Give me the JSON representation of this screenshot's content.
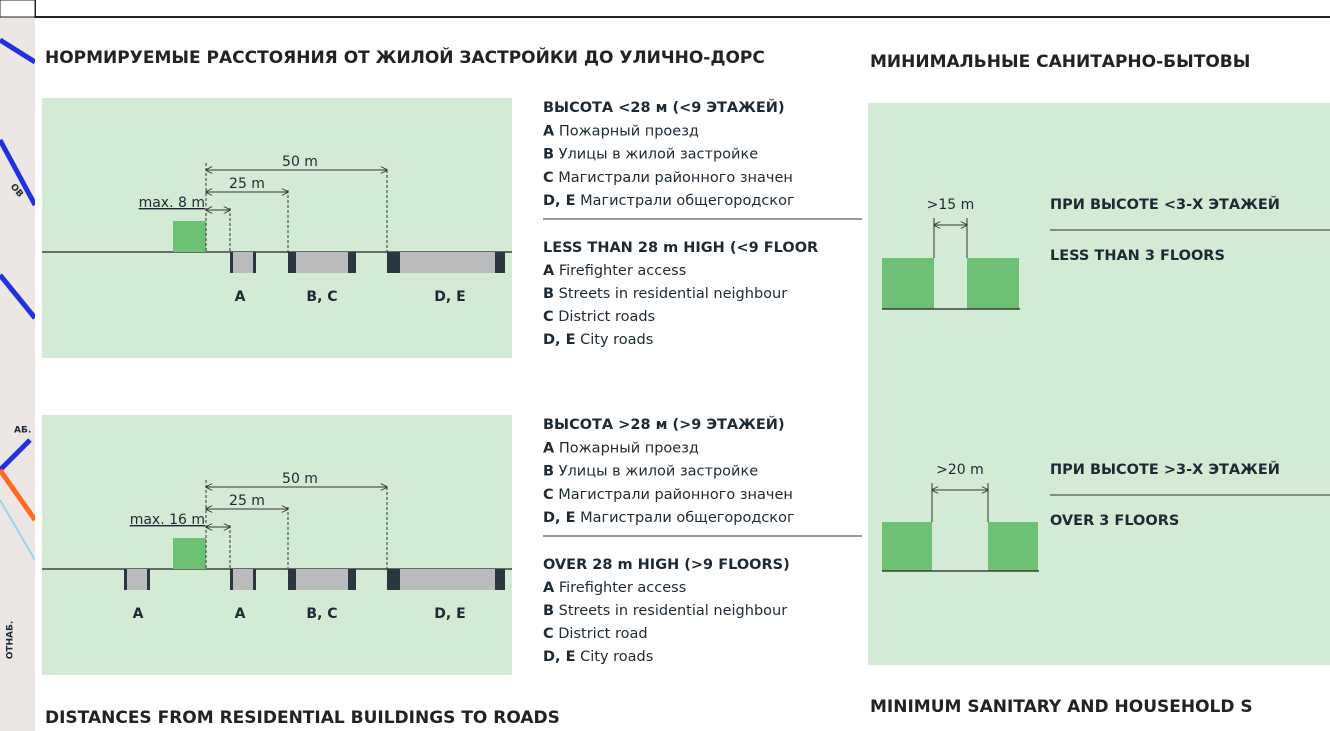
{
  "map_labels": [
    "ОВ",
    "АБ.",
    "ОТНАБ."
  ],
  "left": {
    "heading": "НОРМИРУЕМЫЕ РАССТОЯНИЯ ОТ ЖИЛОЙ ЗАСТРОЙКИ ДО УЛИЧНО-ДОРС",
    "diagrams": [
      {
        "dims": [
          "50 m",
          "25 m",
          "max. 8 m"
        ],
        "roads": [
          "A",
          "B, C",
          "D, E"
        ]
      },
      {
        "dims": [
          "50 m",
          "25 m",
          "max. 16 m"
        ],
        "roads": [
          "A",
          "A",
          "B, C",
          "D, E"
        ]
      }
    ],
    "legends": [
      {
        "ru_title": "ВЫСОТА <28 м (<9 ЭТАЖЕЙ)",
        "ru_items": [
          {
            "key": "A",
            "text": "Пожарный проезд"
          },
          {
            "key": "B",
            "text": "Улицы в жилой застройке"
          },
          {
            "key": "C",
            "text": "Магистрали районного значен"
          },
          {
            "key": "D, E",
            "text": "Магистрали общегородског"
          }
        ],
        "en_title": "LESS THAN 28 m HIGH (<9 FLOOR",
        "en_items": [
          {
            "key": "A",
            "text": "Firefighter access"
          },
          {
            "key": "B",
            "text": "Streets in residential neighbour"
          },
          {
            "key": "C",
            "text": "District roads"
          },
          {
            "key": "D, E",
            "text": "City roads"
          }
        ]
      },
      {
        "ru_title": "ВЫСОТА >28 м (>9 ЭТАЖЕЙ)",
        "ru_items": [
          {
            "key": "A",
            "text": "Пожарный проезд"
          },
          {
            "key": "B",
            "text": "Улицы в жилой застройке"
          },
          {
            "key": "C",
            "text": "Магистрали районного значен"
          },
          {
            "key": "D, E",
            "text": "Магистрали общегородског"
          }
        ],
        "en_title": "OVER 28 m HIGH (>9 FLOORS)",
        "en_items": [
          {
            "key": "A",
            "text": "Firefighter access"
          },
          {
            "key": "B",
            "text": "Streets in residential neighbour"
          },
          {
            "key": "C",
            "text": "District road"
          },
          {
            "key": "D, E",
            "text": "City roads"
          }
        ]
      }
    ],
    "footer": "DISTANCES FROM RESIDENTIAL BUILDINGS TO ROADS"
  },
  "right": {
    "heading": "МИНИМАЛЬНЫЕ САНИТАРНО-БЫТОВЫ",
    "rows": [
      {
        "gap": ">15 m",
        "ru": "ПРИ ВЫСОТЕ <3-Х ЭТАЖЕЙ",
        "en": "LESS THAN 3 FLOORS"
      },
      {
        "gap": ">20 m",
        "ru": "ПРИ ВЫСОТЕ >3-Х ЭТАЖЕЙ",
        "en": "OVER 3 FLOORS"
      }
    ],
    "footer": "MINIMUM SANITARY AND HOUSEHOLD S"
  }
}
